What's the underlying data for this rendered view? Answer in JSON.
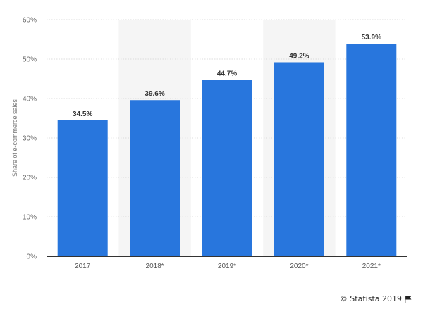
{
  "chart_data": {
    "type": "bar",
    "categories": [
      "2017",
      "2018*",
      "2019*",
      "2020*",
      "2021*"
    ],
    "values": [
      34.5,
      39.6,
      44.7,
      49.2,
      53.9
    ],
    "data_labels": [
      "34.5%",
      "39.6%",
      "44.7%",
      "49.2%",
      "53.9%"
    ],
    "title": "",
    "xlabel": "",
    "ylabel": "Share of e-commerce sales",
    "ylim": [
      0,
      60
    ],
    "yticks": [
      0,
      10,
      20,
      30,
      40,
      50,
      60
    ],
    "ytick_labels": [
      "0%",
      "10%",
      "20%",
      "30%",
      "40%",
      "50%",
      "60%"
    ],
    "grid": true,
    "legend": "none",
    "bar_color": "#2876dd",
    "band_color": "#f5f5f5"
  },
  "credit": {
    "text": "© Statista 2019",
    "icon": "flag-icon"
  }
}
